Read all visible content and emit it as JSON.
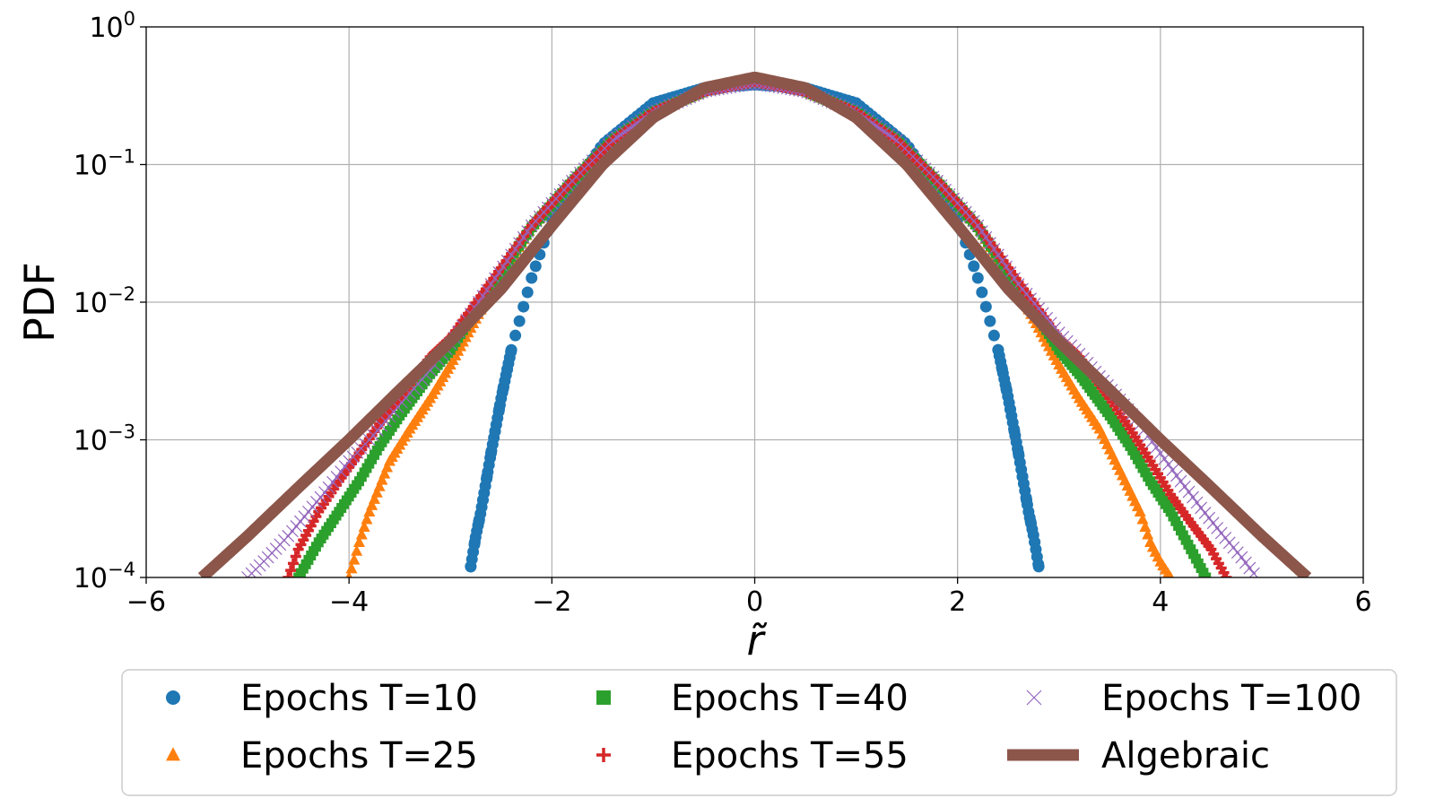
{
  "chart_data": {
    "type": "scatter",
    "xlabel": "r̃",
    "ylabel": "PDF",
    "xlim": [
      -6,
      6
    ],
    "ylim": [
      0.0001,
      1
    ],
    "y_scale": "log",
    "grid": true,
    "legend_position": "below",
    "x_ticks": [
      {
        "value": -6,
        "label": "−6"
      },
      {
        "value": -4,
        "label": "−4"
      },
      {
        "value": -2,
        "label": "−2"
      },
      {
        "value": 0,
        "label": "0"
      },
      {
        "value": 2,
        "label": "2"
      },
      {
        "value": 4,
        "label": "4"
      },
      {
        "value": 6,
        "label": "6"
      }
    ],
    "y_ticks": [
      {
        "value": 0.0001,
        "base": "10",
        "exp": "−4"
      },
      {
        "value": 0.001,
        "base": "10",
        "exp": "−3"
      },
      {
        "value": 0.01,
        "base": "10",
        "exp": "−2"
      },
      {
        "value": 0.1,
        "base": "10",
        "exp": "−1"
      },
      {
        "value": 1,
        "base": "10",
        "exp": "0"
      }
    ],
    "series": [
      {
        "name": "Epochs T=10",
        "marker": "circle",
        "color": "#1f77b4",
        "x": [
          -2.8,
          -2.75,
          -2.7,
          -2.6,
          -2.5,
          -2.4,
          -2.2,
          -2.0,
          -1.5,
          -1.0,
          -0.5,
          0,
          0.5,
          1.0,
          1.5,
          2.0,
          2.2,
          2.4,
          2.5,
          2.6,
          2.7,
          2.75,
          2.8
        ],
        "y": [
          0.00012,
          0.0002,
          0.0003,
          0.0008,
          0.002,
          0.0045,
          0.015,
          0.04,
          0.14,
          0.28,
          0.36,
          0.38,
          0.36,
          0.28,
          0.14,
          0.04,
          0.015,
          0.0045,
          0.002,
          0.0008,
          0.0003,
          0.0002,
          0.00012
        ]
      },
      {
        "name": "Epochs T=25",
        "marker": "triangle",
        "color": "#ff7f0e",
        "x": [
          -4.0,
          -3.9,
          -3.8,
          -3.6,
          -3.4,
          -3.2,
          -3.0,
          -2.6,
          -2.2,
          -1.8,
          -1.4,
          -1.0,
          -0.5,
          0,
          0.5,
          1.0,
          1.4,
          1.8,
          2.2,
          2.6,
          3.0,
          3.2,
          3.4,
          3.6,
          3.8,
          3.9,
          4.0,
          4.1
        ],
        "y": [
          0.0001,
          0.00018,
          0.0003,
          0.0007,
          0.0012,
          0.002,
          0.0035,
          0.012,
          0.035,
          0.075,
          0.15,
          0.24,
          0.34,
          0.4,
          0.34,
          0.24,
          0.15,
          0.075,
          0.035,
          0.012,
          0.0035,
          0.002,
          0.0012,
          0.0006,
          0.0003,
          0.00018,
          0.00013,
          0.0001
        ]
      },
      {
        "name": "Epochs T=40",
        "marker": "square",
        "color": "#2ca02c",
        "x": [
          -4.5,
          -4.3,
          -4.1,
          -3.9,
          -3.7,
          -3.5,
          -3.2,
          -3.0,
          -2.6,
          -2.2,
          -1.8,
          -1.4,
          -1.0,
          -0.5,
          0,
          0.5,
          1.0,
          1.4,
          1.8,
          2.2,
          2.6,
          3.0,
          3.2,
          3.5,
          3.7,
          3.9,
          4.1,
          4.3,
          4.45
        ],
        "y": [
          0.0001,
          0.00018,
          0.0003,
          0.0005,
          0.0009,
          0.0015,
          0.003,
          0.0045,
          0.013,
          0.035,
          0.075,
          0.15,
          0.24,
          0.34,
          0.4,
          0.34,
          0.24,
          0.15,
          0.075,
          0.035,
          0.013,
          0.0045,
          0.003,
          0.0015,
          0.0009,
          0.0005,
          0.0003,
          0.00016,
          0.0001
        ]
      },
      {
        "name": "Epochs T=55",
        "marker": "plus",
        "color": "#d62728",
        "x": [
          -4.6,
          -4.5,
          -4.3,
          -4.1,
          -3.9,
          -3.7,
          -3.5,
          -3.2,
          -3.0,
          -2.6,
          -2.2,
          -1.8,
          -1.4,
          -1.0,
          -0.5,
          0,
          0.5,
          1.0,
          1.4,
          1.8,
          2.2,
          2.6,
          3.0,
          3.2,
          3.5,
          3.7,
          3.9,
          4.1,
          4.3,
          4.5,
          4.65
        ],
        "y": [
          0.0001,
          0.00016,
          0.0003,
          0.0005,
          0.0008,
          0.0013,
          0.002,
          0.004,
          0.0055,
          0.014,
          0.036,
          0.076,
          0.15,
          0.24,
          0.34,
          0.4,
          0.34,
          0.24,
          0.15,
          0.076,
          0.036,
          0.014,
          0.0055,
          0.004,
          0.002,
          0.0012,
          0.0007,
          0.0004,
          0.00025,
          0.00016,
          0.0001
        ]
      },
      {
        "name": "Epochs T=100",
        "marker": "x",
        "color": "#9467bd",
        "x": [
          -5.0,
          -4.8,
          -4.6,
          -4.4,
          -4.2,
          -4.0,
          -3.8,
          -3.5,
          -3.2,
          -3.0,
          -2.6,
          -2.2,
          -1.8,
          -1.4,
          -1.0,
          -0.5,
          0,
          0.5,
          1.0,
          1.4,
          1.8,
          2.2,
          2.6,
          3.0,
          3.2,
          3.5,
          3.8,
          4.0,
          4.2,
          4.4,
          4.6,
          4.8,
          4.95
        ],
        "y": [
          0.0001,
          0.00014,
          0.0002,
          0.0003,
          0.00045,
          0.0007,
          0.001,
          0.0018,
          0.0032,
          0.005,
          0.0135,
          0.036,
          0.076,
          0.15,
          0.24,
          0.34,
          0.39,
          0.34,
          0.24,
          0.15,
          0.076,
          0.036,
          0.0135,
          0.006,
          0.0042,
          0.0024,
          0.0013,
          0.0008,
          0.0005,
          0.00032,
          0.00021,
          0.00014,
          0.0001
        ]
      },
      {
        "name": "Algebraic",
        "marker": "line",
        "color": "#8c564b",
        "x": [
          -5.45,
          -5.0,
          -4.5,
          -4.0,
          -3.5,
          -3.0,
          -2.5,
          -2.0,
          -1.5,
          -1.0,
          -0.5,
          0,
          0.5,
          1.0,
          1.5,
          2.0,
          2.5,
          3.0,
          3.5,
          4.0,
          4.5,
          5.0,
          5.45
        ],
        "y": [
          0.0001,
          0.0002,
          0.00045,
          0.001,
          0.0023,
          0.0052,
          0.0125,
          0.036,
          0.1,
          0.22,
          0.36,
          0.43,
          0.36,
          0.22,
          0.1,
          0.036,
          0.0125,
          0.0052,
          0.0023,
          0.001,
          0.00045,
          0.0002,
          0.0001
        ]
      }
    ]
  }
}
